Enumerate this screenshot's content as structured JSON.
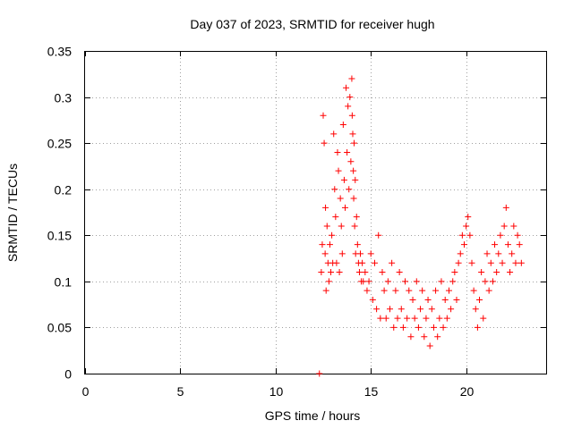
{
  "chart_data": {
    "type": "scatter",
    "title": "Day 037 of 2023, SRMTID for receiver hugh",
    "xlabel": "GPS time / hours",
    "ylabel": "SRMTID / TECUs",
    "xlim": [
      0,
      24.2
    ],
    "ylim": [
      0,
      0.35
    ],
    "x_ticks": [
      0,
      5,
      10,
      15,
      20
    ],
    "x_tick_labels": [
      "0",
      "5",
      "10",
      "15",
      "20"
    ],
    "y_ticks": [
      0,
      0.05,
      0.1,
      0.15,
      0.2,
      0.25,
      0.3,
      0.35
    ],
    "y_tick_labels": [
      "0",
      "0.05",
      "0.1",
      "0.15",
      "0.2",
      "0.25",
      "0.3",
      "0.35"
    ],
    "grid": true,
    "legend": "none",
    "series": [
      {
        "name": "SRMTID",
        "color": "#ff0000",
        "marker": "plus",
        "x": [
          12.3,
          12.4,
          12.45,
          12.5,
          12.55,
          12.6,
          12.62,
          12.65,
          12.7,
          12.75,
          12.8,
          12.85,
          12.9,
          12.95,
          13.0,
          13.05,
          13.1,
          13.15,
          13.2,
          13.25,
          13.3,
          13.35,
          13.4,
          13.45,
          13.5,
          13.55,
          13.6,
          13.65,
          13.7,
          13.75,
          13.8,
          13.85,
          13.9,
          13.95,
          14.0,
          14.02,
          14.05,
          14.08,
          14.1,
          14.12,
          14.15,
          14.18,
          14.2,
          14.25,
          14.3,
          14.35,
          14.4,
          14.45,
          14.5,
          14.55,
          14.6,
          14.7,
          14.8,
          14.9,
          15.0,
          15.1,
          15.2,
          15.3,
          15.4,
          15.5,
          15.6,
          15.7,
          15.8,
          15.9,
          16.0,
          16.1,
          16.2,
          16.3,
          16.4,
          16.5,
          16.6,
          16.7,
          16.8,
          16.9,
          17.0,
          17.1,
          17.2,
          17.3,
          17.4,
          17.5,
          17.6,
          17.7,
          17.8,
          17.9,
          18.0,
          18.1,
          18.2,
          18.3,
          18.4,
          18.5,
          18.6,
          18.7,
          18.8,
          18.9,
          19.0,
          19.1,
          19.2,
          19.3,
          19.4,
          19.5,
          19.6,
          19.7,
          19.8,
          19.9,
          20.0,
          20.1,
          20.2,
          20.3,
          20.4,
          20.5,
          20.6,
          20.7,
          20.8,
          20.9,
          21.0,
          21.1,
          21.2,
          21.3,
          21.4,
          21.5,
          21.6,
          21.7,
          21.8,
          21.9,
          22.0,
          22.1,
          22.2,
          22.3,
          22.4,
          22.5,
          22.6,
          22.7,
          22.8,
          22.9
        ],
        "y": [
          0.0,
          0.11,
          0.14,
          0.28,
          0.25,
          0.13,
          0.18,
          0.09,
          0.16,
          0.12,
          0.1,
          0.14,
          0.11,
          0.15,
          0.12,
          0.26,
          0.2,
          0.17,
          0.12,
          0.24,
          0.22,
          0.11,
          0.19,
          0.16,
          0.13,
          0.27,
          0.21,
          0.18,
          0.31,
          0.24,
          0.29,
          0.2,
          0.3,
          0.23,
          0.32,
          0.28,
          0.26,
          0.22,
          0.19,
          0.25,
          0.16,
          0.21,
          0.13,
          0.17,
          0.14,
          0.12,
          0.11,
          0.13,
          0.1,
          0.12,
          0.1,
          0.11,
          0.09,
          0.1,
          0.13,
          0.08,
          0.12,
          0.07,
          0.15,
          0.06,
          0.11,
          0.09,
          0.06,
          0.1,
          0.07,
          0.12,
          0.05,
          0.09,
          0.06,
          0.11,
          0.07,
          0.05,
          0.1,
          0.06,
          0.09,
          0.04,
          0.08,
          0.06,
          0.1,
          0.05,
          0.07,
          0.09,
          0.04,
          0.06,
          0.08,
          0.03,
          0.07,
          0.05,
          0.09,
          0.04,
          0.06,
          0.1,
          0.05,
          0.08,
          0.06,
          0.09,
          0.07,
          0.1,
          0.11,
          0.08,
          0.12,
          0.13,
          0.15,
          0.14,
          0.16,
          0.17,
          0.15,
          0.12,
          0.09,
          0.07,
          0.05,
          0.08,
          0.11,
          0.06,
          0.1,
          0.13,
          0.09,
          0.12,
          0.1,
          0.14,
          0.11,
          0.13,
          0.15,
          0.12,
          0.16,
          0.18,
          0.14,
          0.11,
          0.13,
          0.16,
          0.12,
          0.15,
          0.14,
          0.12
        ]
      }
    ]
  }
}
